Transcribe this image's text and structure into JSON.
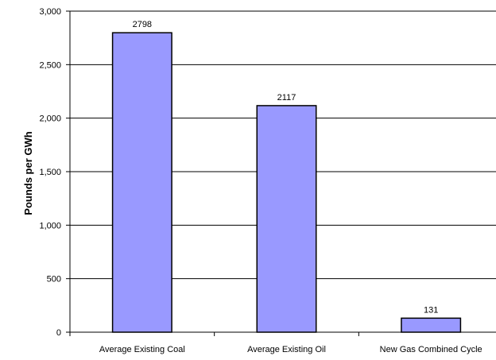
{
  "chart_data": {
    "type": "bar",
    "title": "",
    "xlabel": "",
    "ylabel": "Pounds per GWh",
    "categories": [
      "Average Existing Coal",
      "Average Existing Oil",
      "New Gas Combined Cycle"
    ],
    "values": [
      2798,
      2117,
      131
    ],
    "data_labels": [
      "2798",
      "2117",
      "131"
    ],
    "ylim": [
      0,
      3000
    ],
    "yticks": [
      0,
      500,
      1000,
      1500,
      2000,
      2500,
      3000
    ],
    "ytick_labels": [
      "0",
      "500",
      "1,000",
      "1,500",
      "2,000",
      "2,500",
      "3,000"
    ],
    "grid": true,
    "legend": "none",
    "bar_color": "#9999FF",
    "bar_edge_color": "#000000"
  }
}
